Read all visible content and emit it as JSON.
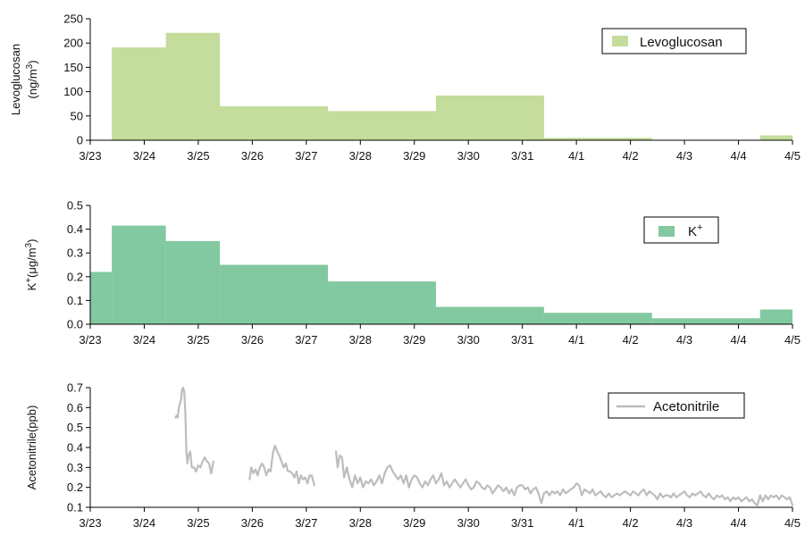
{
  "chart_data": [
    {
      "type": "area",
      "step": true,
      "ylabel_main": "Levoglucosan",
      "ylabel_unit_base": "(ng/m",
      "ylabel_unit_sup": "3",
      "ylabel_unit_close": ")",
      "legend": "Levoglucosan",
      "legend_position": "top-right",
      "color": "#c4dc9c",
      "xlim": [
        0,
        13
      ],
      "ylim": [
        0,
        250
      ],
      "yticks": [
        0,
        50,
        100,
        150,
        200,
        250
      ],
      "x_tick_labels": [
        "3/23",
        "3/24",
        "3/25",
        "3/26",
        "3/27",
        "3/28",
        "3/29",
        "3/30",
        "3/31",
        "4/1",
        "4/2",
        "4/3",
        "4/4",
        "4/5"
      ],
      "segments": [
        {
          "x0": 0.4,
          "x1": 1.4,
          "value": 191
        },
        {
          "x0": 1.4,
          "x1": 2.4,
          "value": 221
        },
        {
          "x0": 2.4,
          "x1": 4.4,
          "value": 70
        },
        {
          "x0": 4.4,
          "x1": 6.4,
          "value": 60
        },
        {
          "x0": 6.4,
          "x1": 8.4,
          "value": 92
        },
        {
          "x0": 8.4,
          "x1": 10.4,
          "value": 5
        },
        {
          "x0": 12.4,
          "x1": 13.0,
          "value": 10
        }
      ]
    },
    {
      "type": "area",
      "step": true,
      "ylabel_base": "K",
      "ylabel_sup": "+",
      "ylabel_unit_base": "(μg/m",
      "ylabel_unit_sup": "3",
      "ylabel_unit_close": ")",
      "legend_base": "K",
      "legend_sup": "+",
      "legend_position": "top-right",
      "color": "#82c8a0",
      "xlim": [
        0,
        13
      ],
      "ylim": [
        0,
        0.5
      ],
      "yticks": [
        0.0,
        0.1,
        0.2,
        0.3,
        0.4,
        0.5
      ],
      "ytick_labels": [
        "0.0",
        "0.1",
        "0.2",
        "0.3",
        "0.4",
        "0.5"
      ],
      "x_tick_labels": [
        "3/23",
        "3/24",
        "3/25",
        "3/26",
        "3/27",
        "3/28",
        "3/29",
        "3/30",
        "3/31",
        "4/1",
        "4/2",
        "4/3",
        "4/4",
        "4/5"
      ],
      "segments": [
        {
          "x0": 0.0,
          "x1": 0.4,
          "value": 0.22
        },
        {
          "x0": 0.4,
          "x1": 1.4,
          "value": 0.415
        },
        {
          "x0": 1.4,
          "x1": 2.4,
          "value": 0.35
        },
        {
          "x0": 2.4,
          "x1": 4.4,
          "value": 0.25
        },
        {
          "x0": 4.4,
          "x1": 6.4,
          "value": 0.18
        },
        {
          "x0": 6.4,
          "x1": 8.4,
          "value": 0.073
        },
        {
          "x0": 8.4,
          "x1": 10.4,
          "value": 0.048
        },
        {
          "x0": 10.4,
          "x1": 12.4,
          "value": 0.025
        },
        {
          "x0": 12.4,
          "x1": 13.0,
          "value": 0.062
        }
      ]
    },
    {
      "type": "line",
      "ylabel": "Acetonitrile(ppb)",
      "legend": "Acetonitrile",
      "legend_position": "top-right",
      "color": "#bdbdbd",
      "xlim": [
        0,
        13
      ],
      "ylim": [
        0.1,
        0.7
      ],
      "yticks": [
        0.1,
        0.2,
        0.3,
        0.4,
        0.5,
        0.6,
        0.7
      ],
      "ytick_labels": [
        "0.1",
        "0.2",
        "0.3",
        "0.4",
        "0.5",
        "0.6",
        "0.7"
      ],
      "x_tick_labels": [
        "3/23",
        "3/24",
        "3/25",
        "3/26",
        "3/27",
        "3/28",
        "3/29",
        "3/30",
        "3/31",
        "4/1",
        "4/2",
        "4/3",
        "4/4",
        "4/5"
      ],
      "segments": [
        [
          [
            1.58,
            0.55
          ],
          [
            1.6,
            0.56
          ],
          [
            1.62,
            0.55
          ],
          [
            1.64,
            0.6
          ],
          [
            1.66,
            0.62
          ],
          [
            1.68,
            0.64
          ],
          [
            1.7,
            0.69
          ],
          [
            1.72,
            0.7
          ],
          [
            1.74,
            0.68
          ],
          [
            1.76,
            0.58
          ],
          [
            1.78,
            0.38
          ],
          [
            1.8,
            0.32
          ],
          [
            1.82,
            0.36
          ],
          [
            1.85,
            0.38
          ],
          [
            1.88,
            0.3
          ],
          [
            1.92,
            0.3
          ],
          [
            1.96,
            0.28
          ],
          [
            2.0,
            0.31
          ],
          [
            2.04,
            0.3
          ],
          [
            2.08,
            0.33
          ],
          [
            2.12,
            0.35
          ],
          [
            2.16,
            0.33
          ],
          [
            2.2,
            0.32
          ],
          [
            2.24,
            0.27
          ],
          [
            2.28,
            0.33
          ]
        ],
        [
          [
            2.95,
            0.24
          ],
          [
            2.98,
            0.3
          ],
          [
            3.02,
            0.27
          ],
          [
            3.06,
            0.29
          ],
          [
            3.1,
            0.26
          ],
          [
            3.14,
            0.3
          ],
          [
            3.18,
            0.32
          ],
          [
            3.22,
            0.3
          ],
          [
            3.26,
            0.26
          ],
          [
            3.3,
            0.29
          ],
          [
            3.34,
            0.28
          ],
          [
            3.38,
            0.37
          ],
          [
            3.42,
            0.41
          ],
          [
            3.46,
            0.38
          ],
          [
            3.5,
            0.36
          ],
          [
            3.54,
            0.33
          ],
          [
            3.58,
            0.3
          ],
          [
            3.62,
            0.32
          ],
          [
            3.66,
            0.28
          ],
          [
            3.7,
            0.28
          ],
          [
            3.74,
            0.27
          ],
          [
            3.78,
            0.25
          ],
          [
            3.82,
            0.28
          ],
          [
            3.86,
            0.22
          ],
          [
            3.9,
            0.26
          ],
          [
            3.94,
            0.24
          ],
          [
            3.98,
            0.25
          ],
          [
            4.02,
            0.22
          ],
          [
            4.06,
            0.26
          ],
          [
            4.1,
            0.26
          ],
          [
            4.15,
            0.21
          ]
        ],
        [
          [
            4.55,
            0.38
          ],
          [
            4.58,
            0.3
          ],
          [
            4.62,
            0.36
          ],
          [
            4.66,
            0.35
          ],
          [
            4.7,
            0.25
          ],
          [
            4.75,
            0.3
          ],
          [
            4.8,
            0.24
          ],
          [
            4.85,
            0.2
          ],
          [
            4.9,
            0.26
          ],
          [
            4.95,
            0.22
          ],
          [
            5.0,
            0.25
          ],
          [
            5.05,
            0.2
          ],
          [
            5.1,
            0.23
          ],
          [
            5.15,
            0.22
          ],
          [
            5.2,
            0.24
          ],
          [
            5.25,
            0.21
          ],
          [
            5.3,
            0.23
          ],
          [
            5.35,
            0.26
          ],
          [
            5.4,
            0.22
          ],
          [
            5.45,
            0.27
          ],
          [
            5.5,
            0.3
          ],
          [
            5.55,
            0.31
          ],
          [
            5.6,
            0.28
          ],
          [
            5.65,
            0.26
          ],
          [
            5.7,
            0.24
          ],
          [
            5.75,
            0.26
          ],
          [
            5.8,
            0.22
          ],
          [
            5.85,
            0.26
          ],
          [
            5.9,
            0.2
          ],
          [
            5.95,
            0.24
          ],
          [
            6.0,
            0.26
          ],
          [
            6.05,
            0.25
          ],
          [
            6.1,
            0.22
          ],
          [
            6.15,
            0.2
          ],
          [
            6.2,
            0.23
          ],
          [
            6.25,
            0.21
          ],
          [
            6.3,
            0.24
          ],
          [
            6.35,
            0.26
          ],
          [
            6.4,
            0.22
          ],
          [
            6.45,
            0.24
          ],
          [
            6.5,
            0.27
          ],
          [
            6.55,
            0.21
          ],
          [
            6.6,
            0.23
          ],
          [
            6.65,
            0.2
          ],
          [
            6.7,
            0.22
          ],
          [
            6.75,
            0.24
          ],
          [
            6.8,
            0.22
          ],
          [
            6.85,
            0.2
          ],
          [
            6.9,
            0.22
          ],
          [
            6.95,
            0.24
          ],
          [
            7.0,
            0.21
          ],
          [
            7.05,
            0.19
          ],
          [
            7.1,
            0.2
          ],
          [
            7.15,
            0.23
          ],
          [
            7.2,
            0.22
          ],
          [
            7.25,
            0.2
          ],
          [
            7.3,
            0.19
          ],
          [
            7.35,
            0.21
          ],
          [
            7.4,
            0.2
          ],
          [
            7.45,
            0.17
          ],
          [
            7.5,
            0.19
          ],
          [
            7.55,
            0.21
          ],
          [
            7.6,
            0.2
          ],
          [
            7.65,
            0.18
          ],
          [
            7.7,
            0.2
          ],
          [
            7.75,
            0.17
          ],
          [
            7.8,
            0.19
          ],
          [
            7.85,
            0.16
          ],
          [
            7.9,
            0.2
          ],
          [
            7.95,
            0.21
          ],
          [
            8.0,
            0.21
          ],
          [
            8.05,
            0.19
          ],
          [
            8.1,
            0.2
          ],
          [
            8.15,
            0.17
          ],
          [
            8.2,
            0.19
          ],
          [
            8.25,
            0.2
          ],
          [
            8.3,
            0.17
          ],
          [
            8.35,
            0.12
          ],
          [
            8.4,
            0.17
          ],
          [
            8.45,
            0.18
          ],
          [
            8.5,
            0.16
          ],
          [
            8.55,
            0.18
          ],
          [
            8.6,
            0.17
          ],
          [
            8.65,
            0.18
          ],
          [
            8.7,
            0.16
          ],
          [
            8.75,
            0.19
          ],
          [
            8.8,
            0.17
          ],
          [
            8.85,
            0.18
          ],
          [
            8.9,
            0.19
          ],
          [
            8.95,
            0.2
          ],
          [
            9.0,
            0.22
          ],
          [
            9.05,
            0.21
          ],
          [
            9.1,
            0.16
          ],
          [
            9.15,
            0.19
          ],
          [
            9.2,
            0.18
          ],
          [
            9.25,
            0.17
          ],
          [
            9.3,
            0.19
          ],
          [
            9.35,
            0.16
          ],
          [
            9.4,
            0.17
          ],
          [
            9.45,
            0.18
          ],
          [
            9.5,
            0.16
          ],
          [
            9.55,
            0.15
          ],
          [
            9.6,
            0.17
          ],
          [
            9.65,
            0.15
          ],
          [
            9.7,
            0.16
          ],
          [
            9.75,
            0.17
          ],
          [
            9.8,
            0.16
          ],
          [
            9.85,
            0.17
          ],
          [
            9.9,
            0.18
          ],
          [
            9.95,
            0.17
          ],
          [
            10.0,
            0.16
          ],
          [
            10.05,
            0.18
          ],
          [
            10.1,
            0.17
          ],
          [
            10.15,
            0.16
          ],
          [
            10.2,
            0.18
          ],
          [
            10.25,
            0.19
          ],
          [
            10.3,
            0.16
          ],
          [
            10.35,
            0.18
          ],
          [
            10.4,
            0.17
          ],
          [
            10.45,
            0.16
          ],
          [
            10.5,
            0.14
          ],
          [
            10.55,
            0.17
          ],
          [
            10.6,
            0.15
          ],
          [
            10.65,
            0.16
          ],
          [
            10.7,
            0.16
          ],
          [
            10.75,
            0.15
          ],
          [
            10.8,
            0.17
          ],
          [
            10.85,
            0.15
          ],
          [
            10.9,
            0.16
          ],
          [
            10.95,
            0.17
          ],
          [
            11.0,
            0.18
          ],
          [
            11.05,
            0.16
          ],
          [
            11.1,
            0.15
          ],
          [
            11.15,
            0.17
          ],
          [
            11.2,
            0.16
          ],
          [
            11.25,
            0.17
          ],
          [
            11.3,
            0.18
          ],
          [
            11.35,
            0.16
          ],
          [
            11.4,
            0.15
          ],
          [
            11.45,
            0.17
          ],
          [
            11.5,
            0.15
          ],
          [
            11.55,
            0.14
          ],
          [
            11.6,
            0.16
          ],
          [
            11.65,
            0.15
          ],
          [
            11.7,
            0.16
          ],
          [
            11.75,
            0.14
          ],
          [
            11.8,
            0.15
          ],
          [
            11.85,
            0.13
          ],
          [
            11.9,
            0.15
          ],
          [
            11.95,
            0.14
          ],
          [
            12.0,
            0.15
          ],
          [
            12.05,
            0.13
          ],
          [
            12.1,
            0.14
          ],
          [
            12.15,
            0.15
          ],
          [
            12.2,
            0.13
          ],
          [
            12.25,
            0.14
          ],
          [
            12.3,
            0.12
          ],
          [
            12.35,
            0.11
          ],
          [
            12.4,
            0.16
          ],
          [
            12.45,
            0.13
          ],
          [
            12.5,
            0.16
          ],
          [
            12.55,
            0.14
          ],
          [
            12.6,
            0.16
          ],
          [
            12.65,
            0.15
          ],
          [
            12.7,
            0.16
          ],
          [
            12.75,
            0.14
          ],
          [
            12.8,
            0.16
          ],
          [
            12.85,
            0.15
          ],
          [
            12.9,
            0.14
          ],
          [
            12.95,
            0.15
          ],
          [
            13.0,
            0.11
          ]
        ]
      ]
    }
  ]
}
